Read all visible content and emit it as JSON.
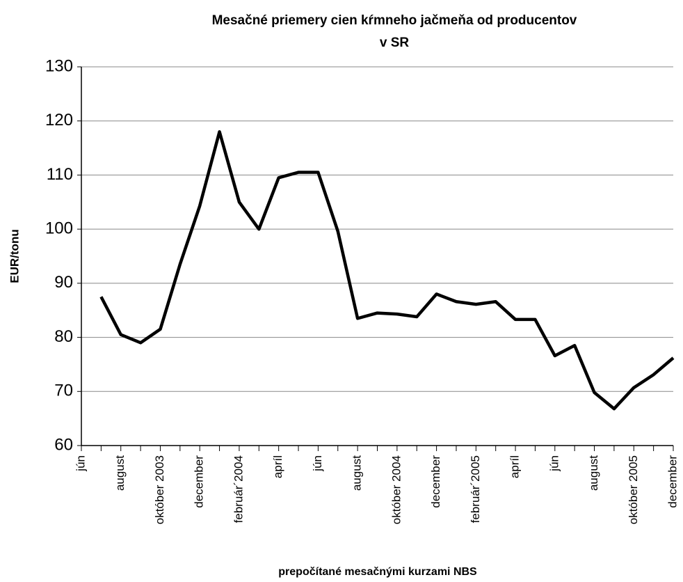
{
  "chart_data": {
    "type": "line",
    "title": [
      "Mesačné priemery cien kŕmneho jačmeňa od producentov",
      "v SR"
    ],
    "ylabel": "EUR/tonu",
    "xlabel": "prepočítané mesačnými kurzami NBS",
    "categories": [
      "jún",
      null,
      "august",
      null,
      "október 2003",
      null,
      "december",
      null,
      "február´2004",
      null,
      "apríl",
      null,
      "jún",
      null,
      "august",
      null,
      "október 2004",
      null,
      "december",
      null,
      "február´2005",
      null,
      "apríl",
      null,
      "jún",
      null,
      "august",
      null,
      "október 2005",
      null,
      "december"
    ],
    "series": [
      {
        "color": "#000000",
        "values": [
          null,
          87.5,
          80.5,
          79,
          81.5,
          93.5,
          104.3,
          118,
          105,
          100,
          109.5,
          110.5,
          110.5,
          99.6,
          83.5,
          84.5,
          84.3,
          83.8,
          88,
          86.6,
          86.1,
          86.6,
          83.3,
          83.3,
          76.6,
          78.5,
          69.8,
          66.8,
          70.7,
          73.1,
          76.2
        ]
      }
    ],
    "ylim": [
      60,
      130
    ],
    "yticks": [
      60,
      70,
      80,
      90,
      100,
      110,
      120,
      130
    ],
    "grid": true
  }
}
